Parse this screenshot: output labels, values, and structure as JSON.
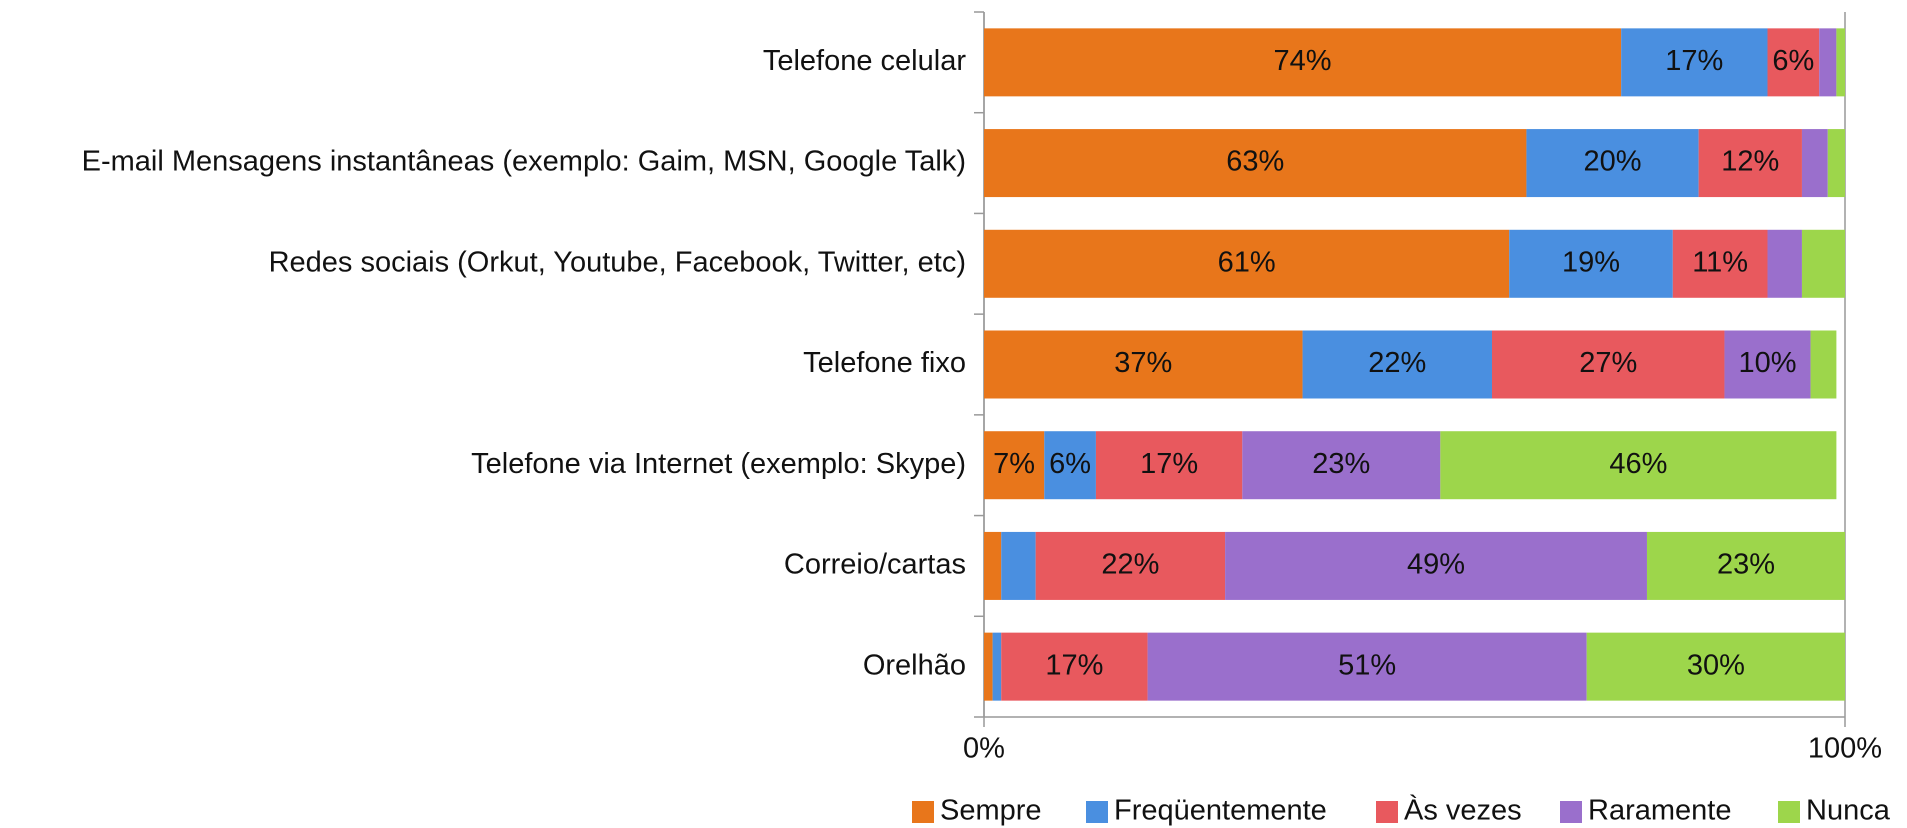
{
  "chart_data": {
    "type": "stacked-barh",
    "categories": [
      "Telefone celular",
      "E-mail Mensagens instantâneas (exemplo: Gaim, MSN, Google Talk)",
      "Redes sociais (Orkut, Youtube, Facebook, Twitter, etc)",
      "Telefone fixo",
      "Telefone via Internet (exemplo: Skype)",
      "Correio/cartas",
      "Orelhão"
    ],
    "series": [
      {
        "name": "Sempre",
        "color": "#e8761b",
        "values": [
          74,
          63,
          61,
          37,
          7,
          2,
          1
        ],
        "value_labels": [
          "74%",
          "63%",
          "61%",
          "37%",
          "7%",
          null,
          null
        ]
      },
      {
        "name": "Freqüentemente",
        "color": "#4a8fe0",
        "values": [
          17,
          20,
          19,
          22,
          6,
          4,
          1
        ],
        "value_labels": [
          "17%",
          "20%",
          "19%",
          "22%",
          "6%",
          null,
          null
        ]
      },
      {
        "name": "Às vezes",
        "color": "#e8595e",
        "values": [
          6,
          12,
          11,
          27,
          17,
          22,
          17
        ],
        "value_labels": [
          "6%",
          "12%",
          "11%",
          "27%",
          "17%",
          "22%",
          "17%"
        ]
      },
      {
        "name": "Raramente",
        "color": "#9a6fcc",
        "values": [
          2,
          3,
          4,
          10,
          23,
          49,
          51
        ],
        "value_labels": [
          null,
          null,
          null,
          "10%",
          "23%",
          "49%",
          "51%"
        ]
      },
      {
        "name": "Nunca",
        "color": "#9dd64b",
        "values": [
          1,
          2,
          5,
          3,
          46,
          23,
          30
        ],
        "value_labels": [
          null,
          null,
          null,
          null,
          "46%",
          "23%",
          "30%"
        ]
      }
    ],
    "xlim": [
      0,
      100
    ],
    "xticks": [
      {
        "value": 0,
        "label": "0%"
      },
      {
        "value": 100,
        "label": "100%"
      }
    ],
    "legend": "bottom"
  }
}
